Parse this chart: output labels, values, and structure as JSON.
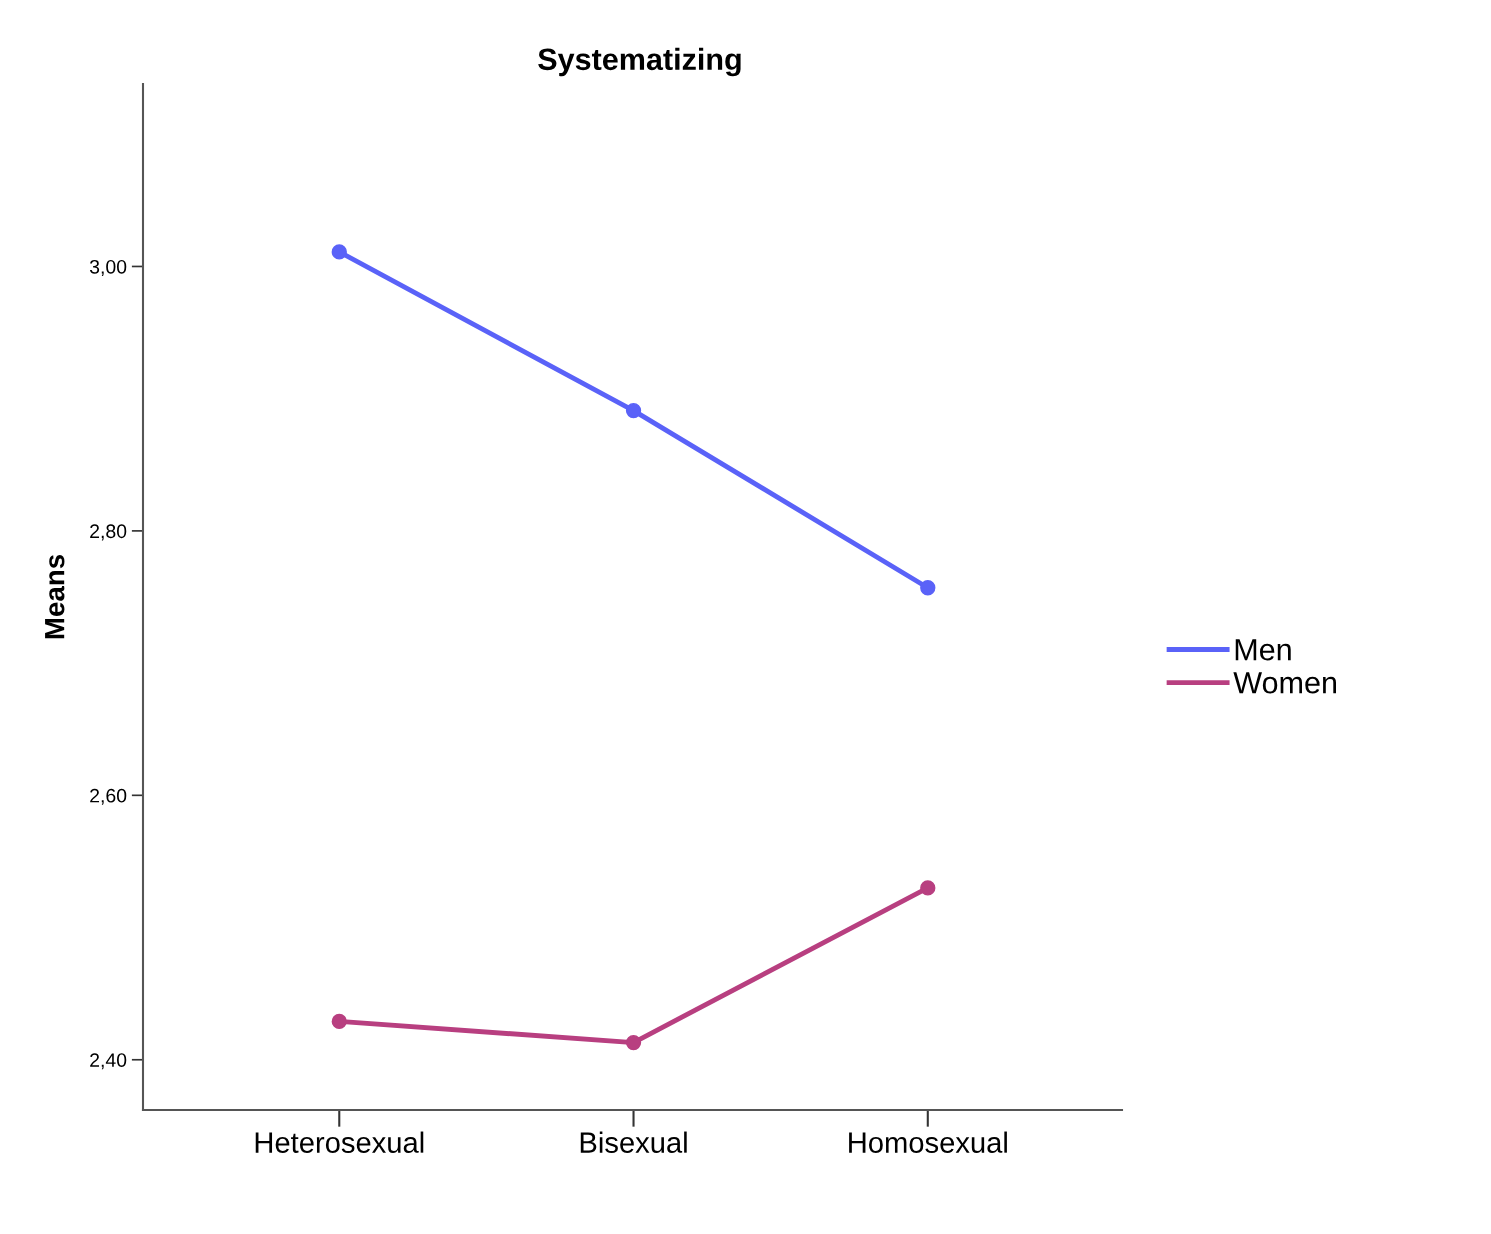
{
  "chart_data": {
    "type": "line",
    "title": "Systematizing",
    "ylabel": "Means",
    "categories": [
      "Heterosexual",
      "Bisexual",
      "Homosexual"
    ],
    "series": [
      {
        "name": "Men",
        "color": "#5a62f8",
        "values": [
          3.011,
          2.891,
          2.757
        ]
      },
      {
        "name": "Women",
        "color": "#b83f80",
        "values": [
          2.429,
          2.413,
          2.53
        ]
      }
    ],
    "ylim": [
      2.362,
      3.138
    ],
    "yticks": [
      {
        "value": 2.4,
        "label": "2,40"
      },
      {
        "value": 2.6,
        "label": "2,60"
      },
      {
        "value": 2.8,
        "label": "2,80"
      },
      {
        "value": 3.0,
        "label": "3,00"
      }
    ],
    "grid": false,
    "legend": "right",
    "marker": "circle",
    "line_style": "solid"
  }
}
